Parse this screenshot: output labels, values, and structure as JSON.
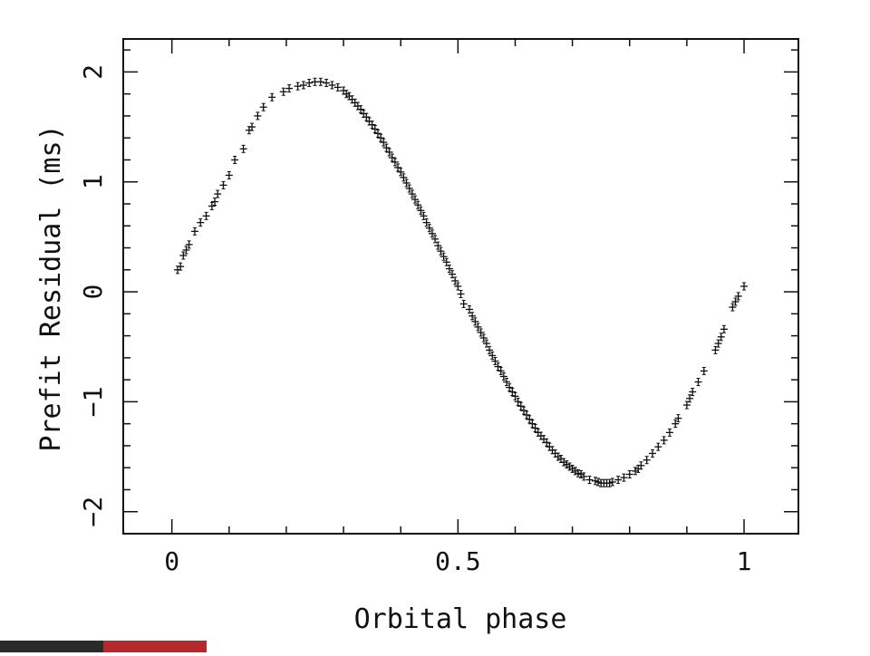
{
  "chart_data": {
    "type": "scatter",
    "title": "",
    "xlabel": "Orbital phase",
    "ylabel": "Prefit Residual (ms)",
    "xlim": [
      -0.085,
      1.095
    ],
    "ylim": [
      -2.2,
      2.3
    ],
    "xticks": [
      0,
      0.5,
      1
    ],
    "xtick_labels": [
      "0",
      "0.5",
      "1"
    ],
    "yticks": [
      -2,
      -1,
      0,
      1,
      2
    ],
    "ytick_labels": [
      "−2",
      "−1",
      "0",
      "1",
      "2"
    ],
    "grid": false,
    "legend": "none",
    "errorbars": true,
    "marker_color": "#111111",
    "series": [
      {
        "x": [
          0.01,
          0.015,
          0.02,
          0.025,
          0.03,
          0.04,
          0.05,
          0.06,
          0.07,
          0.075,
          0.08,
          0.09,
          0.1,
          0.11,
          0.125,
          0.135,
          0.14,
          0.15,
          0.16,
          0.175,
          0.195,
          0.205,
          0.22,
          0.23,
          0.24,
          0.25,
          0.26,
          0.27,
          0.28,
          0.29,
          0.3,
          0.305,
          0.31,
          0.315,
          0.32,
          0.325,
          0.33,
          0.335,
          0.34,
          0.345,
          0.35,
          0.355,
          0.36,
          0.365,
          0.37,
          0.375,
          0.38,
          0.385,
          0.39,
          0.395,
          0.4,
          0.405,
          0.41,
          0.415,
          0.42,
          0.425,
          0.43,
          0.435,
          0.44,
          0.445,
          0.45,
          0.455,
          0.46,
          0.465,
          0.47,
          0.475,
          0.48,
          0.485,
          0.49,
          0.495,
          0.5,
          0.505,
          0.51,
          0.52,
          0.525,
          0.53,
          0.535,
          0.54,
          0.545,
          0.55,
          0.555,
          0.56,
          0.565,
          0.57,
          0.575,
          0.58,
          0.585,
          0.59,
          0.595,
          0.6,
          0.605,
          0.61,
          0.615,
          0.62,
          0.625,
          0.63,
          0.635,
          0.64,
          0.645,
          0.65,
          0.655,
          0.66,
          0.665,
          0.67,
          0.675,
          0.68,
          0.685,
          0.69,
          0.695,
          0.7,
          0.705,
          0.71,
          0.715,
          0.72,
          0.73,
          0.74,
          0.745,
          0.75,
          0.755,
          0.76,
          0.765,
          0.77,
          0.78,
          0.79,
          0.8,
          0.81,
          0.815,
          0.82,
          0.83,
          0.84,
          0.85,
          0.86,
          0.87,
          0.88,
          0.885,
          0.9,
          0.905,
          0.91,
          0.92,
          0.93,
          0.95,
          0.955,
          0.96,
          0.965,
          0.98,
          0.985,
          0.99,
          1.0
        ],
        "y": [
          0.2,
          0.23,
          0.33,
          0.38,
          0.43,
          0.55,
          0.63,
          0.69,
          0.78,
          0.82,
          0.89,
          0.97,
          1.06,
          1.2,
          1.3,
          1.47,
          1.5,
          1.6,
          1.68,
          1.77,
          1.82,
          1.85,
          1.87,
          1.88,
          1.9,
          1.91,
          1.91,
          1.9,
          1.88,
          1.86,
          1.83,
          1.8,
          1.78,
          1.75,
          1.72,
          1.69,
          1.66,
          1.62,
          1.59,
          1.55,
          1.52,
          1.48,
          1.44,
          1.4,
          1.36,
          1.31,
          1.27,
          1.22,
          1.18,
          1.13,
          1.09,
          1.04,
          0.99,
          0.94,
          0.89,
          0.84,
          0.79,
          0.74,
          0.69,
          0.63,
          0.58,
          0.53,
          0.48,
          0.42,
          0.37,
          0.32,
          0.27,
          0.21,
          0.16,
          0.1,
          0.05,
          -0.02,
          -0.11,
          -0.16,
          -0.22,
          -0.27,
          -0.32,
          -0.37,
          -0.42,
          -0.47,
          -0.53,
          -0.58,
          -0.63,
          -0.68,
          -0.72,
          -0.77,
          -0.82,
          -0.87,
          -0.91,
          -0.95,
          -1.0,
          -1.04,
          -1.08,
          -1.12,
          -1.16,
          -1.2,
          -1.24,
          -1.28,
          -1.31,
          -1.34,
          -1.37,
          -1.41,
          -1.44,
          -1.47,
          -1.5,
          -1.52,
          -1.55,
          -1.57,
          -1.59,
          -1.61,
          -1.63,
          -1.65,
          -1.66,
          -1.68,
          -1.71,
          -1.72,
          -1.73,
          -1.74,
          -1.74,
          -1.74,
          -1.74,
          -1.73,
          -1.71,
          -1.69,
          -1.66,
          -1.63,
          -1.61,
          -1.58,
          -1.53,
          -1.47,
          -1.41,
          -1.35,
          -1.28,
          -1.2,
          -1.15,
          -1.03,
          -0.97,
          -0.91,
          -0.82,
          -0.72,
          -0.53,
          -0.47,
          -0.41,
          -0.34,
          -0.14,
          -0.09,
          -0.04,
          0.05
        ]
      }
    ]
  }
}
